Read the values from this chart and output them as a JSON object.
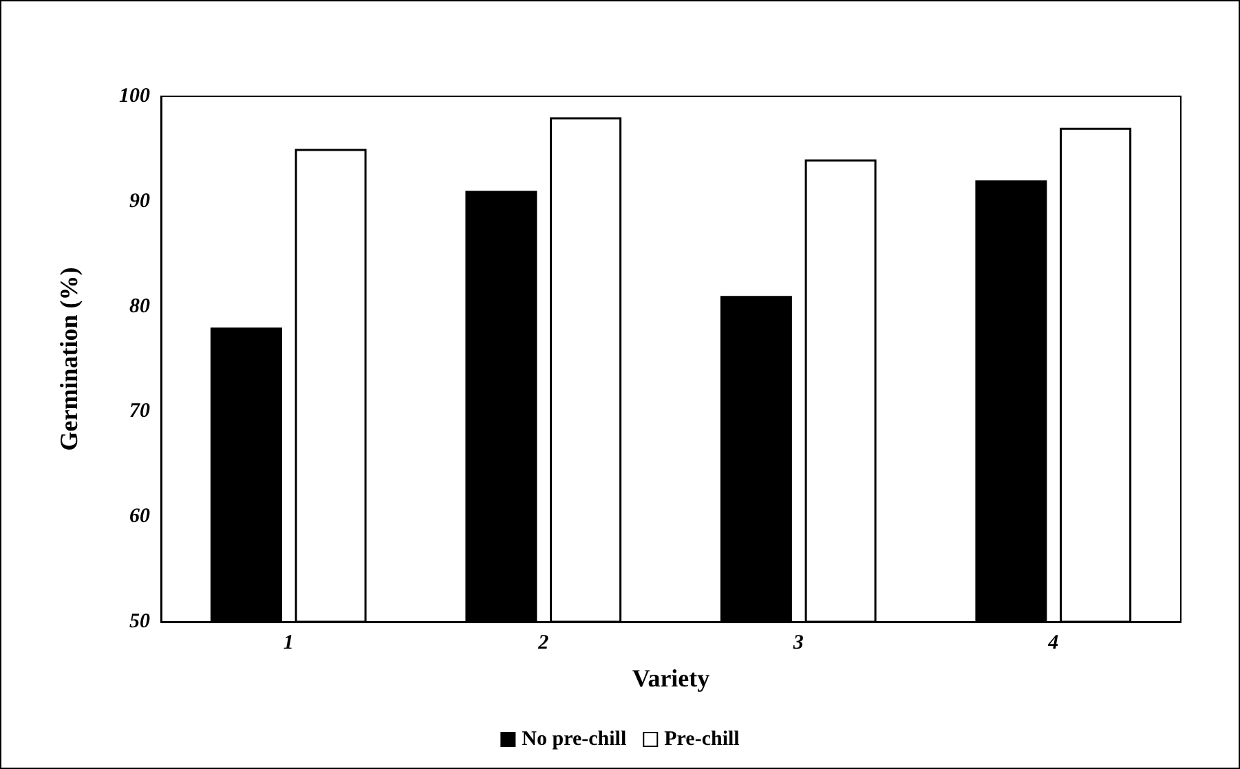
{
  "chart_data": {
    "type": "bar",
    "xlabel": "Variety",
    "ylabel": "Germination (%)",
    "categories": [
      "1",
      "2",
      "3",
      "4"
    ],
    "series": [
      {
        "name": "No pre-chill",
        "color": "#000000",
        "values": [
          78,
          91,
          81,
          92
        ]
      },
      {
        "name": "Pre-chill",
        "color": "#ffffff",
        "values": [
          95,
          98,
          94,
          97
        ]
      }
    ],
    "ylim": [
      50,
      100
    ],
    "yticks": [
      50,
      60,
      70,
      80,
      90,
      100
    ],
    "grid": false,
    "legend": "bottom"
  }
}
